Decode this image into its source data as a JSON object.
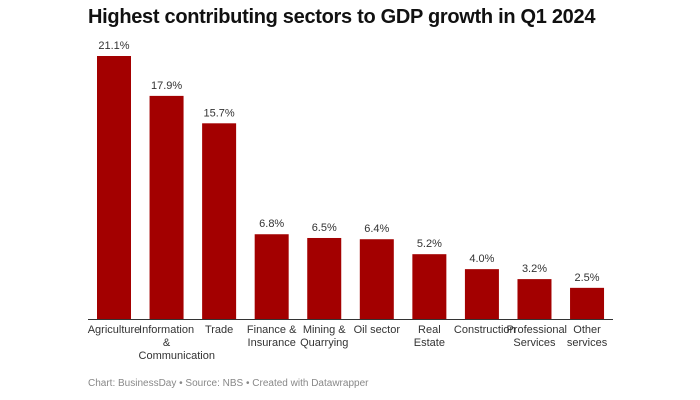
{
  "chart_data": {
    "type": "bar",
    "title": "Highest contributing sectors to GDP growth in Q1 2024",
    "categories": [
      "Agriculture",
      "Information & Communication",
      "Trade",
      "Finance & Insurance",
      "Mining & Quarrying",
      "Oil sector",
      "Real Estate",
      "Construction",
      "Professional Services",
      "Other services"
    ],
    "values": [
      21.1,
      17.9,
      15.7,
      6.8,
      6.5,
      6.4,
      5.2,
      4.0,
      3.2,
      2.5
    ],
    "value_labels": [
      "21.1%",
      "17.9%",
      "15.7%",
      "6.8%",
      "6.5%",
      "6.4%",
      "5.2%",
      "4.0%",
      "3.2%",
      "2.5%"
    ],
    "color": "#a30000",
    "footer": "Chart: BusinessDay • Source: NBS • Created with Datawrapper"
  }
}
